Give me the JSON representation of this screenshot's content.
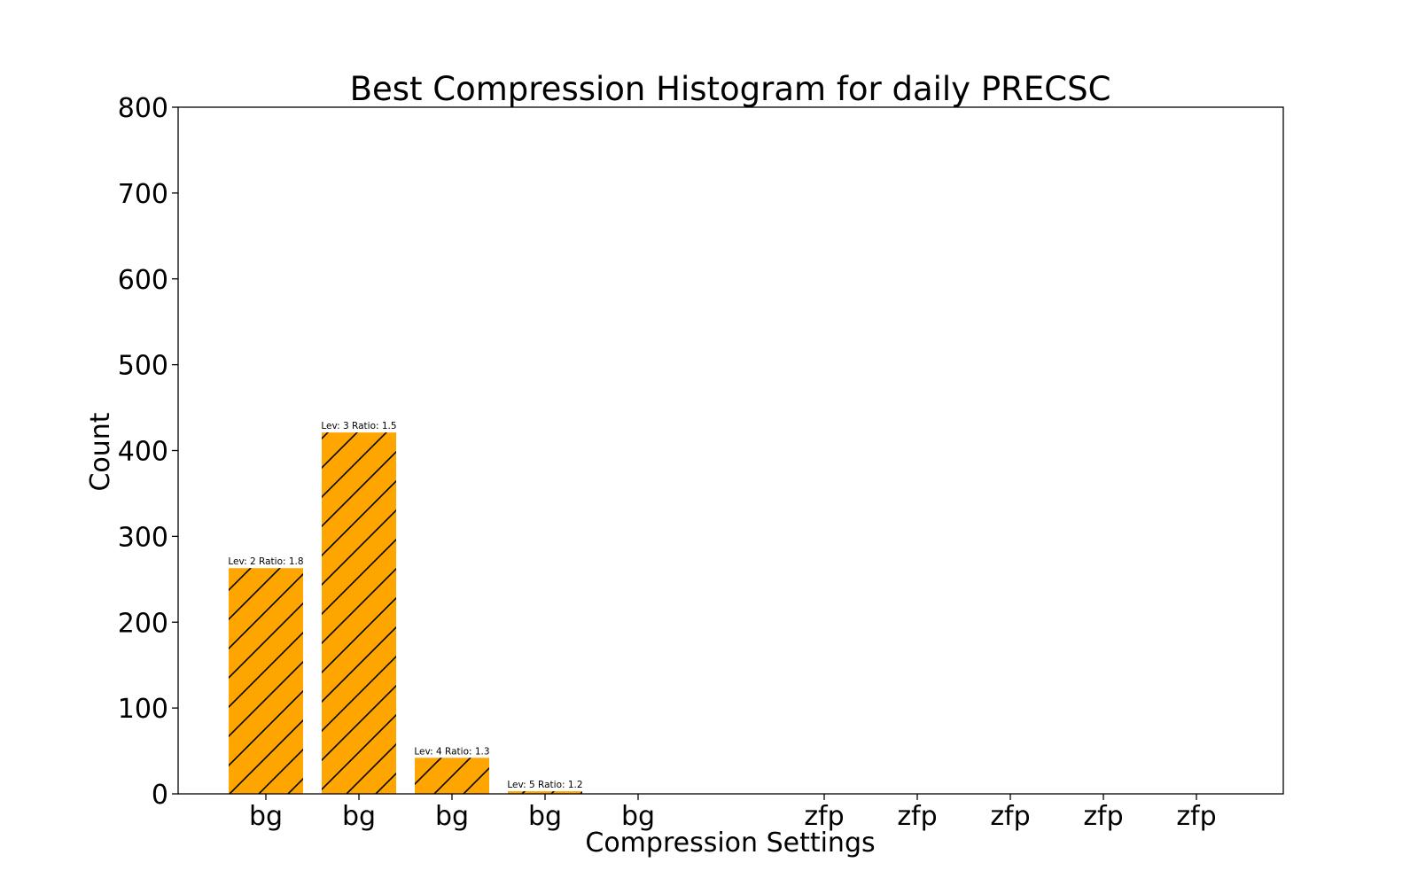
{
  "chart_data": {
    "type": "bar",
    "title": "Best Compression Histogram for daily PRECSC",
    "xlabel": "Compression Settings",
    "ylabel": "Count",
    "ylim": [
      0,
      800
    ],
    "yticks": [
      0,
      100,
      200,
      300,
      400,
      500,
      600,
      700,
      800
    ],
    "categories": [
      "bg",
      "bg",
      "bg",
      "bg",
      "bg",
      "",
      "zfp",
      "zfp",
      "zfp",
      "zfp",
      "zfp"
    ],
    "values": [
      263,
      421,
      42,
      3,
      0,
      0,
      0,
      0,
      0,
      0,
      0
    ],
    "bar_labels": [
      "Lev: 2 Ratio: 1.8",
      "Lev: 3 Ratio: 1.5",
      "Lev: 4 Ratio: 1.3",
      "Lev: 5 Ratio: 1.2",
      "",
      "",
      "",
      "",
      "",
      "",
      ""
    ],
    "bar_color": "#FFA500",
    "hatch": "/",
    "grid": false,
    "legend": null
  }
}
